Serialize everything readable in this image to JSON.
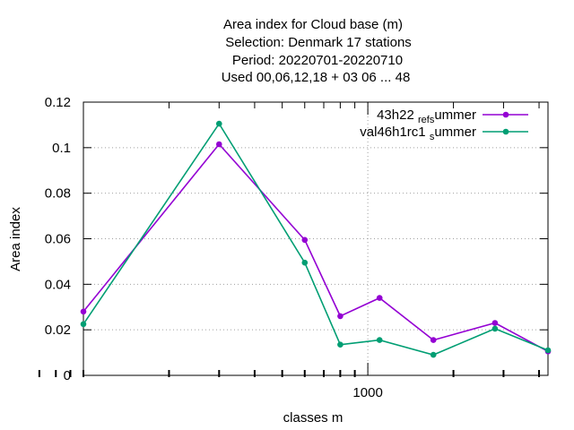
{
  "chart_data": {
    "type": "line",
    "title_lines": [
      "Area index  for Cloud base (m)",
      "Selection: Denmark     17 stations",
      "Period: 20220701-20220710",
      "Used  00,06,12,18  + 03 06 ... 48"
    ],
    "xlabel": "classes m",
    "ylabel": "Area index",
    "x_scale": "log",
    "xlim": [
      100,
      4300
    ],
    "x_ticks": [
      {
        "value": 1000,
        "label": "1000"
      }
    ],
    "ylim": [
      0,
      0.12
    ],
    "y_ticks": [
      {
        "value": 0,
        "label": "0"
      },
      {
        "value": 0.02,
        "label": "0.02"
      },
      {
        "value": 0.04,
        "label": "0.04"
      },
      {
        "value": 0.06,
        "label": "0.06"
      },
      {
        "value": 0.08,
        "label": "0.08"
      },
      {
        "value": 0.1,
        "label": "0.1"
      },
      {
        "value": 0.12,
        "label": "0.12"
      }
    ],
    "grid": true,
    "legend_position": "top-right",
    "series": [
      {
        "name_parts": [
          "43h22",
          "ref",
          "s",
          "ummer"
        ],
        "color": "#9400d3",
        "x": [
          100,
          300,
          600,
          800,
          1100,
          1700,
          2800,
          4300
        ],
        "y": [
          0.028,
          0.1015,
          0.0595,
          0.026,
          0.034,
          0.0155,
          0.023,
          0.0105
        ]
      },
      {
        "name_parts": [
          "val46h1rc1",
          "",
          "s",
          "ummer"
        ],
        "color": "#009e73",
        "x": [
          100,
          300,
          600,
          800,
          1100,
          1700,
          2800,
          4300
        ],
        "y": [
          0.0225,
          0.1105,
          0.0495,
          0.0135,
          0.0155,
          0.009,
          0.0205,
          0.011
        ]
      }
    ]
  }
}
